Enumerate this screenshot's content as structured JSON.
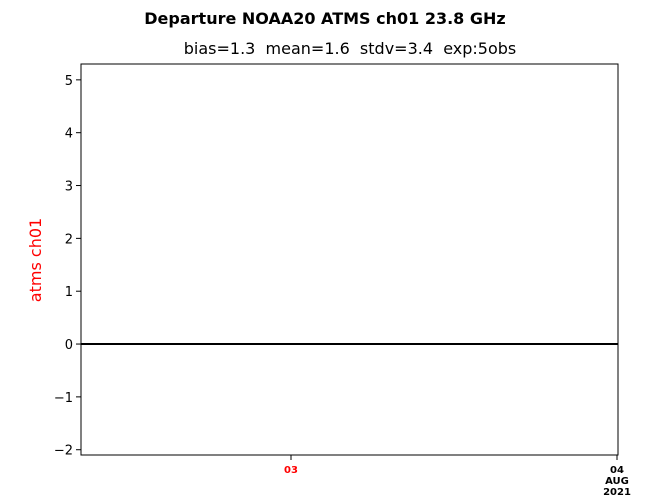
{
  "chart_data": {
    "type": "line",
    "title": "Departure NOAA20 ATMS ch01 23.8 GHz",
    "subtitle": "bias=1.3  mean=1.6  stdv=3.4  exp:5obs",
    "ylabel": "atms ch01",
    "ylabel_color": "#ff0000",
    "ylim": [
      -2.1,
      5.3
    ],
    "y_ticks": [
      -2,
      -1,
      0,
      1,
      2,
      3,
      4,
      5
    ],
    "y_tick_labels": [
      "−2",
      "−1",
      "0",
      "1",
      "2",
      "3",
      "4",
      "5"
    ],
    "x_ticks": [
      {
        "lines": [
          "03"
        ],
        "color": "#ff0000"
      },
      {
        "lines": [
          "04",
          "AUG",
          "2021"
        ],
        "color": "#000000"
      }
    ],
    "reference_line": {
      "y": 0,
      "color": "#000000"
    },
    "series": [],
    "grid": false
  }
}
